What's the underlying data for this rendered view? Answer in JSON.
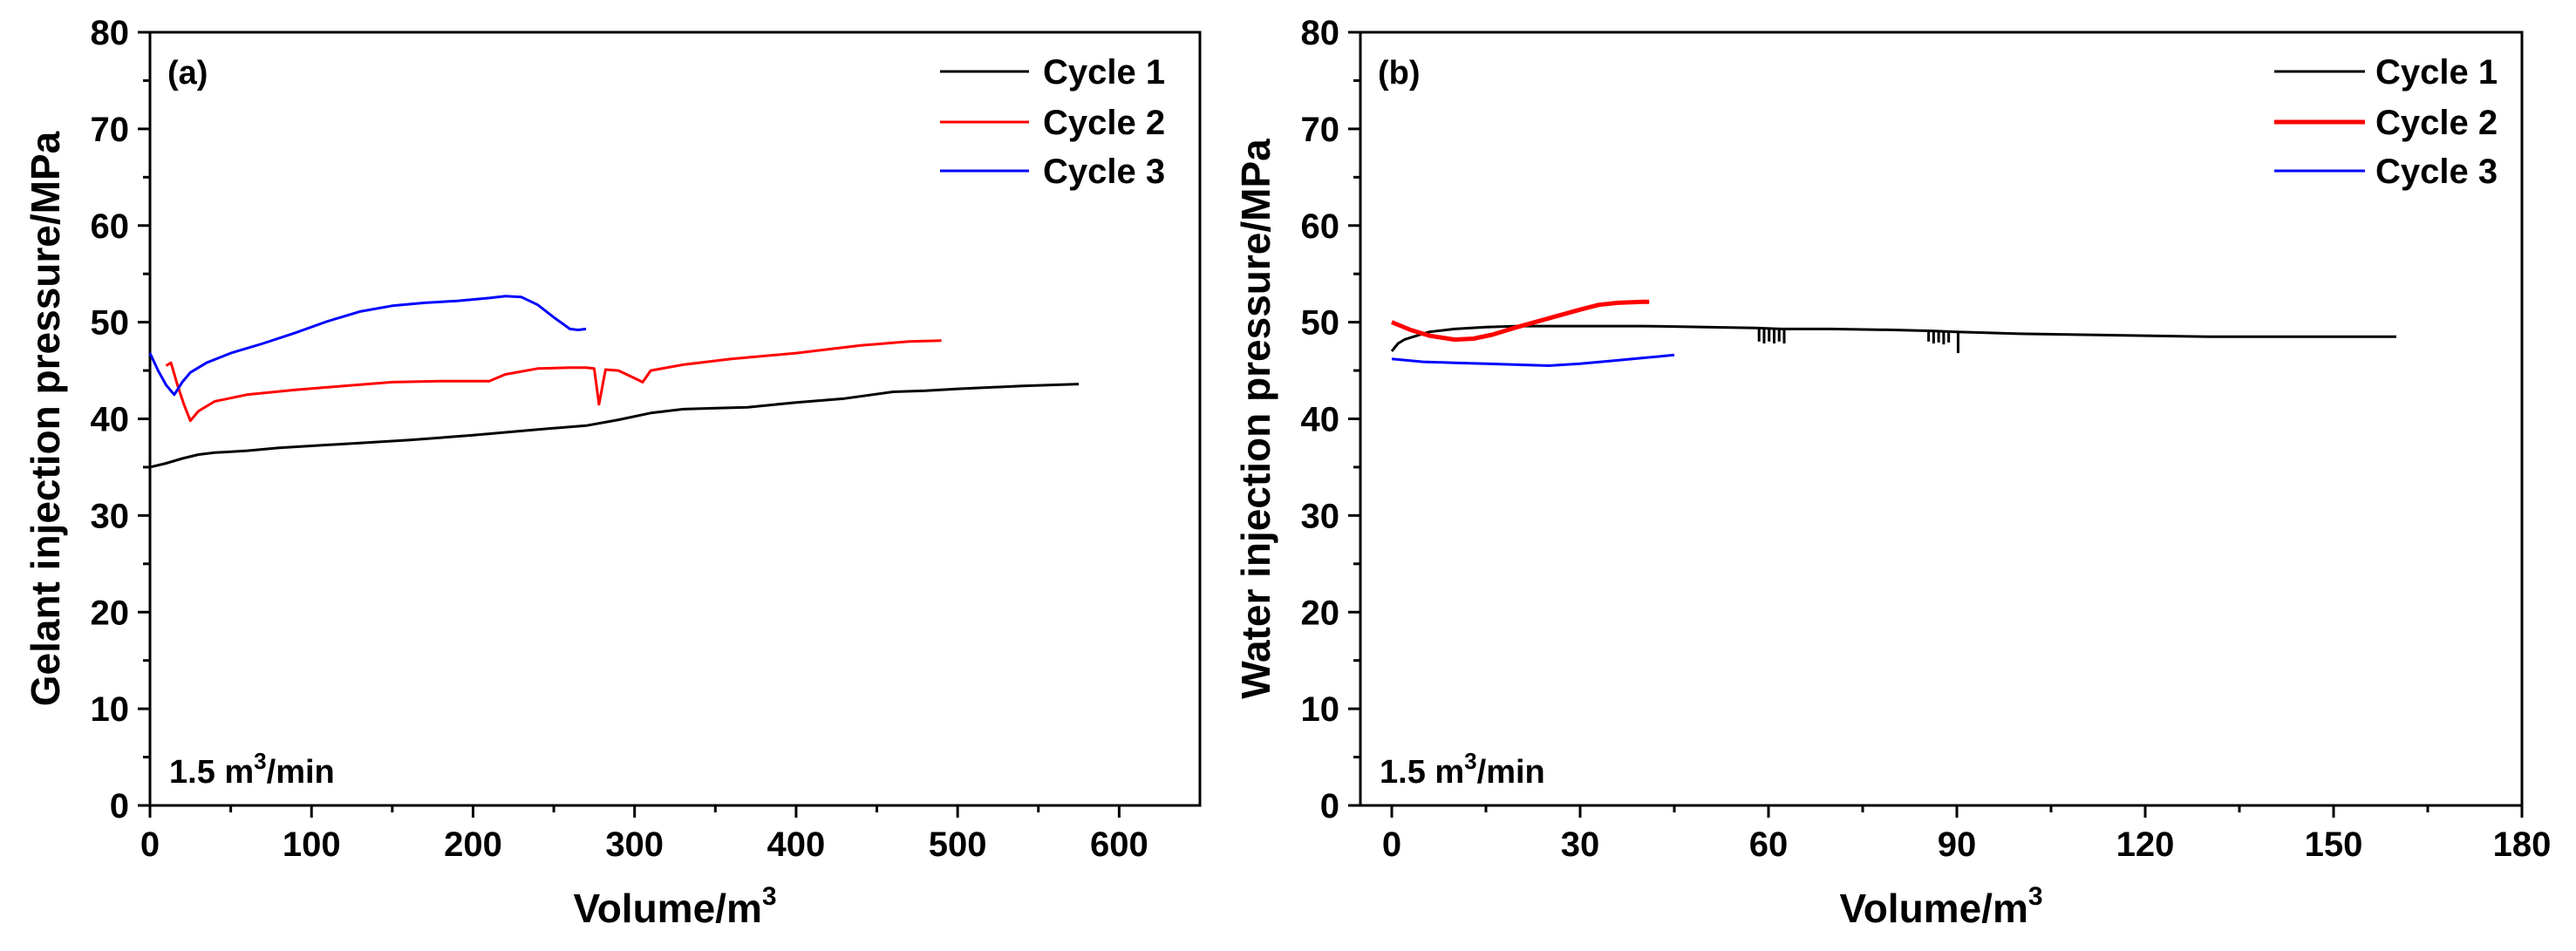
{
  "chart_data": [
    {
      "type": "line",
      "panel_label": "(a)",
      "xlabel": "Volume/m",
      "xlabel_sup": "3",
      "ylabel": "Gelant injection pressure/MPa",
      "xlim": [
        0,
        650
      ],
      "ylim": [
        0,
        80
      ],
      "xticks": [
        0,
        100,
        200,
        300,
        400,
        500,
        600
      ],
      "yticks": [
        0,
        10,
        20,
        30,
        40,
        50,
        60,
        70,
        80
      ],
      "annotation": {
        "text": "1.5 m",
        "sup": "3",
        "tail": "/min"
      },
      "legend_position": "top-right",
      "series": [
        {
          "name": "Cycle 1",
          "color": "#000000",
          "x": [
            0,
            10,
            20,
            30,
            40,
            60,
            80,
            100,
            130,
            160,
            200,
            240,
            270,
            290,
            310,
            330,
            350,
            370,
            400,
            430,
            460,
            480,
            500,
            540,
            575
          ],
          "y": [
            35.0,
            35.4,
            35.9,
            36.3,
            36.5,
            36.7,
            37.0,
            37.2,
            37.5,
            37.8,
            38.3,
            38.9,
            39.3,
            39.9,
            40.6,
            41.0,
            41.1,
            41.2,
            41.7,
            42.1,
            42.8,
            42.9,
            43.1,
            43.4,
            43.6
          ]
        },
        {
          "name": "Cycle 2",
          "color": "#ff0000",
          "x": [
            10,
            13,
            17,
            21,
            25,
            30,
            40,
            60,
            90,
            120,
            150,
            180,
            210,
            220,
            240,
            260,
            270,
            275,
            278,
            282,
            290,
            300,
            305,
            310,
            330,
            360,
            400,
            440,
            470,
            490
          ],
          "y": [
            45.5,
            45.8,
            43.5,
            41.5,
            39.8,
            40.8,
            41.8,
            42.5,
            43.0,
            43.4,
            43.8,
            43.9,
            43.9,
            44.6,
            45.2,
            45.3,
            45.3,
            45.2,
            41.5,
            45.1,
            45.0,
            44.2,
            43.8,
            45.0,
            45.6,
            46.2,
            46.8,
            47.6,
            48.0,
            48.1
          ]
        },
        {
          "name": "Cycle 3",
          "color": "#0000ff",
          "x": [
            0,
            5,
            10,
            15,
            20,
            25,
            35,
            50,
            70,
            90,
            110,
            130,
            150,
            170,
            190,
            210,
            220,
            230,
            240,
            250,
            260,
            265,
            270
          ],
          "y": [
            46.8,
            45.0,
            43.5,
            42.5,
            43.8,
            44.8,
            45.8,
            46.8,
            47.8,
            48.9,
            50.1,
            51.1,
            51.7,
            52.0,
            52.2,
            52.5,
            52.7,
            52.6,
            51.8,
            50.5,
            49.3,
            49.2,
            49.3
          ]
        }
      ]
    },
    {
      "type": "line",
      "panel_label": "(b)",
      "xlabel": "Volume/m",
      "xlabel_sup": "3",
      "ylabel": "Water injection pressure/MPa",
      "xlim": [
        -5,
        180
      ],
      "ylim": [
        0,
        80
      ],
      "xticks": [
        0,
        30,
        60,
        90,
        120,
        150,
        180
      ],
      "yticks": [
        0,
        10,
        20,
        30,
        40,
        50,
        60,
        70,
        80
      ],
      "annotation": {
        "text": "1.5 m",
        "sup": "3",
        "tail": "/min"
      },
      "legend_position": "top-right",
      "series": [
        {
          "name": "Cycle 1",
          "color": "#000000",
          "x": [
            0,
            1,
            2,
            4,
            6,
            10,
            15,
            20,
            30,
            40,
            50,
            58,
            62,
            70,
            80,
            86,
            90,
            100,
            110,
            120,
            130,
            140,
            150,
            160
          ],
          "y": [
            47.0,
            47.8,
            48.2,
            48.6,
            49.0,
            49.3,
            49.5,
            49.6,
            49.6,
            49.6,
            49.5,
            49.4,
            49.3,
            49.3,
            49.2,
            49.1,
            49.0,
            48.8,
            48.7,
            48.6,
            48.5,
            48.5,
            48.5,
            48.5
          ],
          "spikes": [
            {
              "x": 58.5,
              "y": 48.0
            },
            {
              "x": 59.3,
              "y": 47.8
            },
            {
              "x": 60.1,
              "y": 48.0
            },
            {
              "x": 60.9,
              "y": 47.8
            },
            {
              "x": 61.7,
              "y": 48.0
            },
            {
              "x": 62.5,
              "y": 47.8
            },
            {
              "x": 85.5,
              "y": 48.0
            },
            {
              "x": 86.3,
              "y": 47.8
            },
            {
              "x": 87.1,
              "y": 47.9
            },
            {
              "x": 87.9,
              "y": 47.7
            },
            {
              "x": 88.7,
              "y": 47.9
            },
            {
              "x": 90.2,
              "y": 46.8
            }
          ]
        },
        {
          "name": "Cycle 2",
          "color": "#ff0000",
          "x": [
            0,
            3,
            6,
            10,
            13,
            16,
            20,
            25,
            30,
            33,
            36,
            40,
            41
          ],
          "y": [
            50.0,
            49.2,
            48.6,
            48.2,
            48.3,
            48.7,
            49.5,
            50.4,
            51.3,
            51.8,
            52.0,
            52.1,
            52.1
          ],
          "stroke_width": 5
        },
        {
          "name": "Cycle 3",
          "color": "#0000ff",
          "x": [
            0,
            5,
            10,
            15,
            20,
            25,
            30,
            35,
            40,
            45
          ],
          "y": [
            46.2,
            45.9,
            45.8,
            45.7,
            45.6,
            45.5,
            45.7,
            46.0,
            46.3,
            46.6
          ]
        }
      ]
    }
  ]
}
